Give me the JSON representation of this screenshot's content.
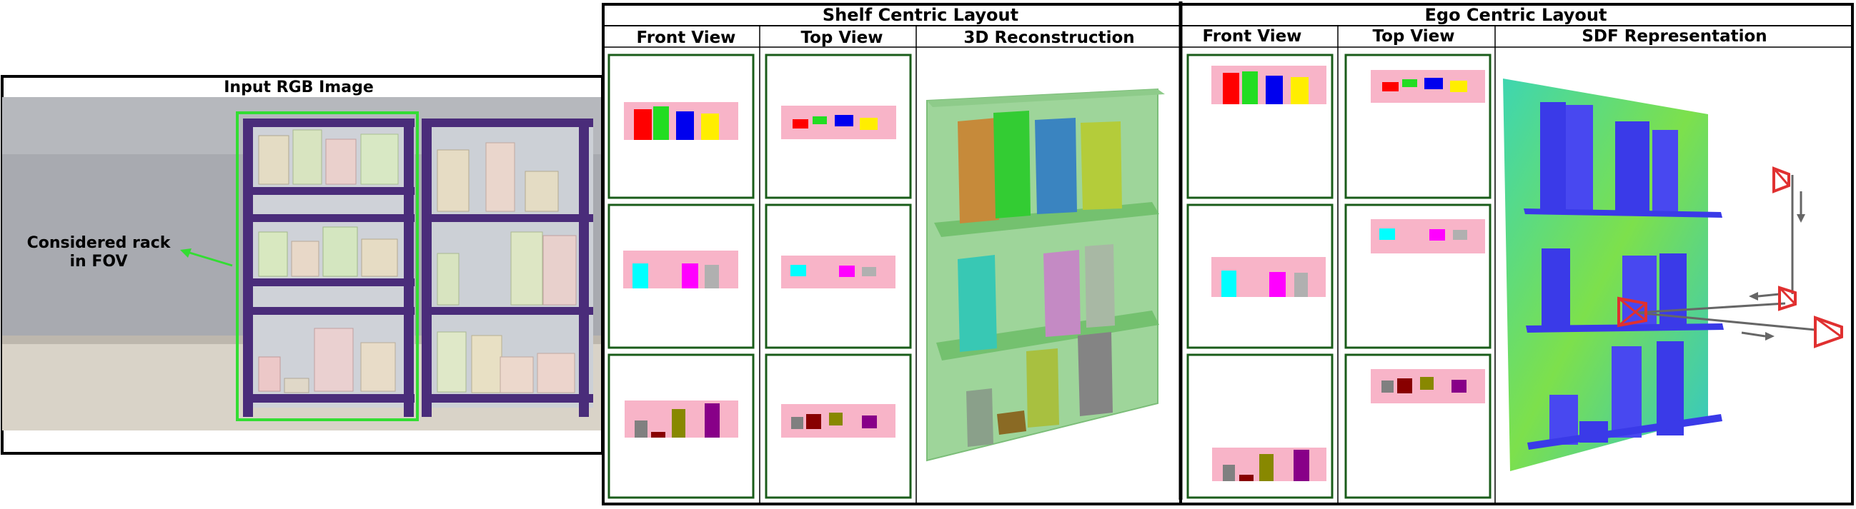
{
  "input_panel": {
    "title": "Input RGB Image",
    "annotation_line1": "Considered rack",
    "annotation_line2": "in FOV"
  },
  "shelf_centric": {
    "title": "Shelf Centric Layout",
    "col_front": "Front View",
    "col_top": "Top View",
    "col_recon": "3D Reconstruction"
  },
  "ego_centric": {
    "title": "Ego Centric Layout",
    "col_front": "Front View",
    "col_top": "Top View",
    "col_sdf": "SDF Representation"
  },
  "colors": {
    "panel_border": "#1a5c1a",
    "shelf_band": "#f8b4c8",
    "fov_box": "#33dd33",
    "rack": "#4a2c7a",
    "red": "#ff0000",
    "green": "#22dd22",
    "blue": "#0000ee",
    "yellow": "#ffee00",
    "cyan": "#00ffff",
    "magenta": "#ff00ff",
    "gray": "#b0b0b0",
    "darkgray": "#808080",
    "maroon": "#880000",
    "olive": "#888800",
    "purple": "#880088"
  },
  "icons": [
    "arrow-icon",
    "camera-icon"
  ]
}
